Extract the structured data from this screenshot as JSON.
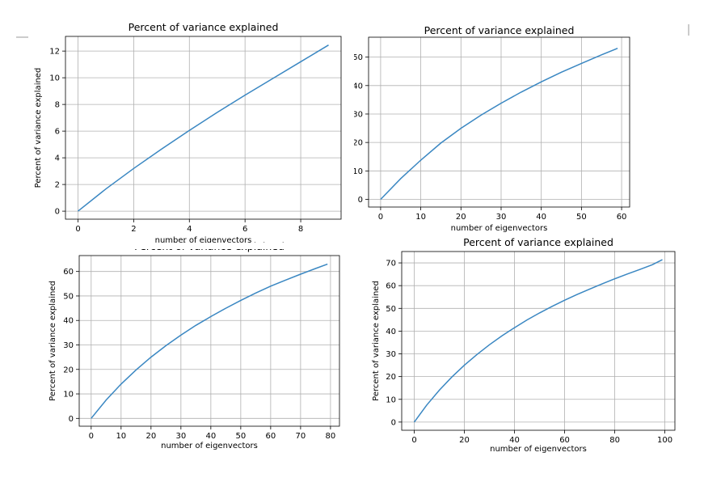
{
  "chart_data": [
    {
      "type": "line",
      "title": "Percent of variance explained",
      "xlabel": "number of eigenvectors",
      "ylabel": "Percent of variance explained",
      "xlim": [
        -0.45,
        9.45
      ],
      "ylim": [
        -0.6,
        13.1
      ],
      "xticks": [
        0,
        2,
        4,
        6,
        8
      ],
      "yticks": [
        0,
        2,
        4,
        6,
        8,
        10,
        12
      ],
      "yticks_shown": [
        "0",
        "2",
        "4",
        "6",
        "8",
        "10",
        "12"
      ],
      "grid": true,
      "x": [
        0,
        1,
        2,
        3,
        4,
        5,
        6,
        7,
        8,
        9
      ],
      "values": [
        0.0,
        1.66,
        3.2,
        4.65,
        6.05,
        7.4,
        8.7,
        9.95,
        11.2,
        12.45
      ]
    },
    {
      "type": "line",
      "title": "Percent of variance explained",
      "xlabel": "number of eigenvectors",
      "ylabel": "",
      "xlim": [
        -3,
        62
      ],
      "ylim": [
        -2.7,
        57
      ],
      "xticks": [
        0,
        10,
        20,
        30,
        40,
        50,
        60
      ],
      "yticks": [
        0,
        10,
        20,
        30,
        40,
        50
      ],
      "yticks_shown": [
        "0",
        "10",
        "20",
        "30",
        "40",
        "50"
      ],
      "grid": true,
      "x": [
        0,
        5,
        10,
        15,
        20,
        25,
        30,
        35,
        40,
        45,
        50,
        55,
        59
      ],
      "values": [
        0,
        7.3,
        13.8,
        19.8,
        25.0,
        29.6,
        33.8,
        37.7,
        41.3,
        44.7,
        47.8,
        50.8,
        53.1
      ]
    },
    {
      "type": "line",
      "title": "Percent of variance explained",
      "xlabel": "number of eigenvectors",
      "ylabel": "Percent of variance explained",
      "xlim": [
        -4,
        83
      ],
      "ylim": [
        -3.2,
        66.5
      ],
      "xticks": [
        0,
        10,
        20,
        30,
        40,
        50,
        60,
        70,
        80
      ],
      "yticks": [
        0,
        10,
        20,
        30,
        40,
        50,
        60
      ],
      "yticks_shown": [
        "0",
        "10",
        "20",
        "30",
        "40",
        "50",
        "60"
      ],
      "grid": true,
      "x": [
        0,
        5,
        10,
        15,
        20,
        25,
        30,
        35,
        40,
        45,
        50,
        55,
        60,
        65,
        70,
        75,
        79
      ],
      "values": [
        0,
        7.5,
        14.0,
        19.8,
        25.0,
        29.7,
        34.0,
        38.0,
        41.6,
        45.0,
        48.2,
        51.2,
        54.0,
        56.5,
        58.9,
        61.2,
        63.0
      ]
    },
    {
      "type": "line",
      "title": "Percent of variance explained",
      "xlabel": "number of eigenvectors",
      "ylabel": "Percent of variance explained",
      "xlim": [
        -5,
        104
      ],
      "ylim": [
        -3.6,
        75
      ],
      "xticks": [
        0,
        20,
        40,
        60,
        80,
        100
      ],
      "yticks": [
        0,
        10,
        20,
        30,
        40,
        50,
        60,
        70
      ],
      "yticks_shown": [
        "0",
        "10",
        "20",
        "30",
        "40",
        "50",
        "60",
        "70"
      ],
      "grid": true,
      "x": [
        0,
        5,
        10,
        15,
        20,
        25,
        30,
        35,
        40,
        45,
        50,
        55,
        60,
        65,
        70,
        75,
        80,
        85,
        90,
        95,
        99
      ],
      "values": [
        0,
        7.5,
        14.0,
        19.8,
        25.0,
        29.7,
        34.0,
        37.9,
        41.5,
        44.9,
        48.0,
        50.9,
        53.6,
        56.1,
        58.5,
        60.8,
        63.0,
        65.1,
        67.1,
        69.2,
        71.4
      ]
    }
  ]
}
